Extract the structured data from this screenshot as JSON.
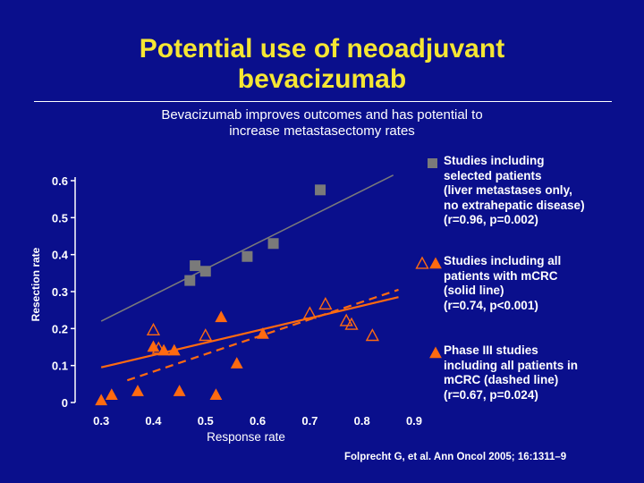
{
  "slide": {
    "title_line1": "Potential use of neoadjuvant",
    "title_line2": "bevacizumab",
    "subtitle_line1": "Bevacizumab improves outcomes and has potential to",
    "subtitle_line2": "increase metastasectomy rates",
    "citation": "Folprecht G, et al. Ann Oncol 2005; 16:1311–9",
    "colors": {
      "background": "#0a0f8c",
      "title": "#f5e633",
      "grey": "#7a7a7a",
      "orange": "#ff6a10"
    }
  },
  "legend": [
    {
      "symbol": "grey-square",
      "lines": [
        "Studies including",
        "selected patients",
        "(liver metastases only,",
        "no extrahepatic disease)",
        "(r=0.96, p=0.002)"
      ]
    },
    {
      "symbol": "open-and-filled-triangle",
      "lines": [
        "Studies including all",
        "patients with mCRC",
        "(solid line)",
        "(r=0.74, p<0.001)"
      ]
    },
    {
      "symbol": "filled-triangle",
      "lines": [
        "Phase III studies",
        "including all patients in",
        "mCRC (dashed line)",
        "(r=0.67, p=0.024)"
      ]
    }
  ],
  "chart_data": {
    "type": "scatter",
    "xlabel": "Response rate",
    "ylabel": "Resection rate",
    "xlim": [
      0.25,
      0.9
    ],
    "ylim": [
      0,
      0.6
    ],
    "x_ticks": [
      "0.3",
      "0.4",
      "0.5",
      "0.6",
      "0.7",
      "0.8",
      "0.9"
    ],
    "x_tick_values": [
      0.3,
      0.4,
      0.5,
      0.6,
      0.7,
      0.8,
      0.9
    ],
    "y_ticks": [
      "0",
      "0.1",
      "0.2",
      "0.3",
      "0.4",
      "0.5",
      "0.6"
    ],
    "y_tick_values": [
      0,
      0.1,
      0.2,
      0.3,
      0.4,
      0.5,
      0.6
    ],
    "series": [
      {
        "marker": "grey-square",
        "color": "#7a7a7a",
        "points": [
          [
            0.48,
            0.37
          ],
          [
            0.5,
            0.355
          ],
          [
            0.47,
            0.33
          ],
          [
            0.58,
            0.395
          ],
          [
            0.63,
            0.43
          ],
          [
            0.72,
            0.575
          ]
        ]
      },
      {
        "marker": "open-triangle",
        "color": "#ff6a10",
        "points": [
          [
            0.4,
            0.195
          ],
          [
            0.41,
            0.145
          ],
          [
            0.5,
            0.18
          ],
          [
            0.7,
            0.24
          ],
          [
            0.73,
            0.265
          ],
          [
            0.77,
            0.22
          ],
          [
            0.78,
            0.21
          ],
          [
            0.82,
            0.18
          ]
        ]
      },
      {
        "marker": "filled-triangle",
        "color": "#ff6a10",
        "points": [
          [
            0.3,
            0.005
          ],
          [
            0.32,
            0.02
          ],
          [
            0.37,
            0.03
          ],
          [
            0.4,
            0.15
          ],
          [
            0.42,
            0.14
          ],
          [
            0.44,
            0.14
          ],
          [
            0.45,
            0.03
          ],
          [
            0.52,
            0.02
          ],
          [
            0.53,
            0.23
          ],
          [
            0.56,
            0.105
          ],
          [
            0.61,
            0.185
          ]
        ]
      }
    ],
    "fit_lines": [
      {
        "style": "solid",
        "color": "#7a7a7a",
        "from": [
          0.3,
          0.22
        ],
        "to": [
          0.86,
          0.615
        ]
      },
      {
        "style": "solid",
        "color": "#ff6a10",
        "from": [
          0.3,
          0.095
        ],
        "to": [
          0.87,
          0.285
        ]
      },
      {
        "style": "dashed",
        "color": "#ff6a10",
        "from": [
          0.35,
          0.06
        ],
        "to": [
          0.87,
          0.305
        ]
      }
    ]
  }
}
